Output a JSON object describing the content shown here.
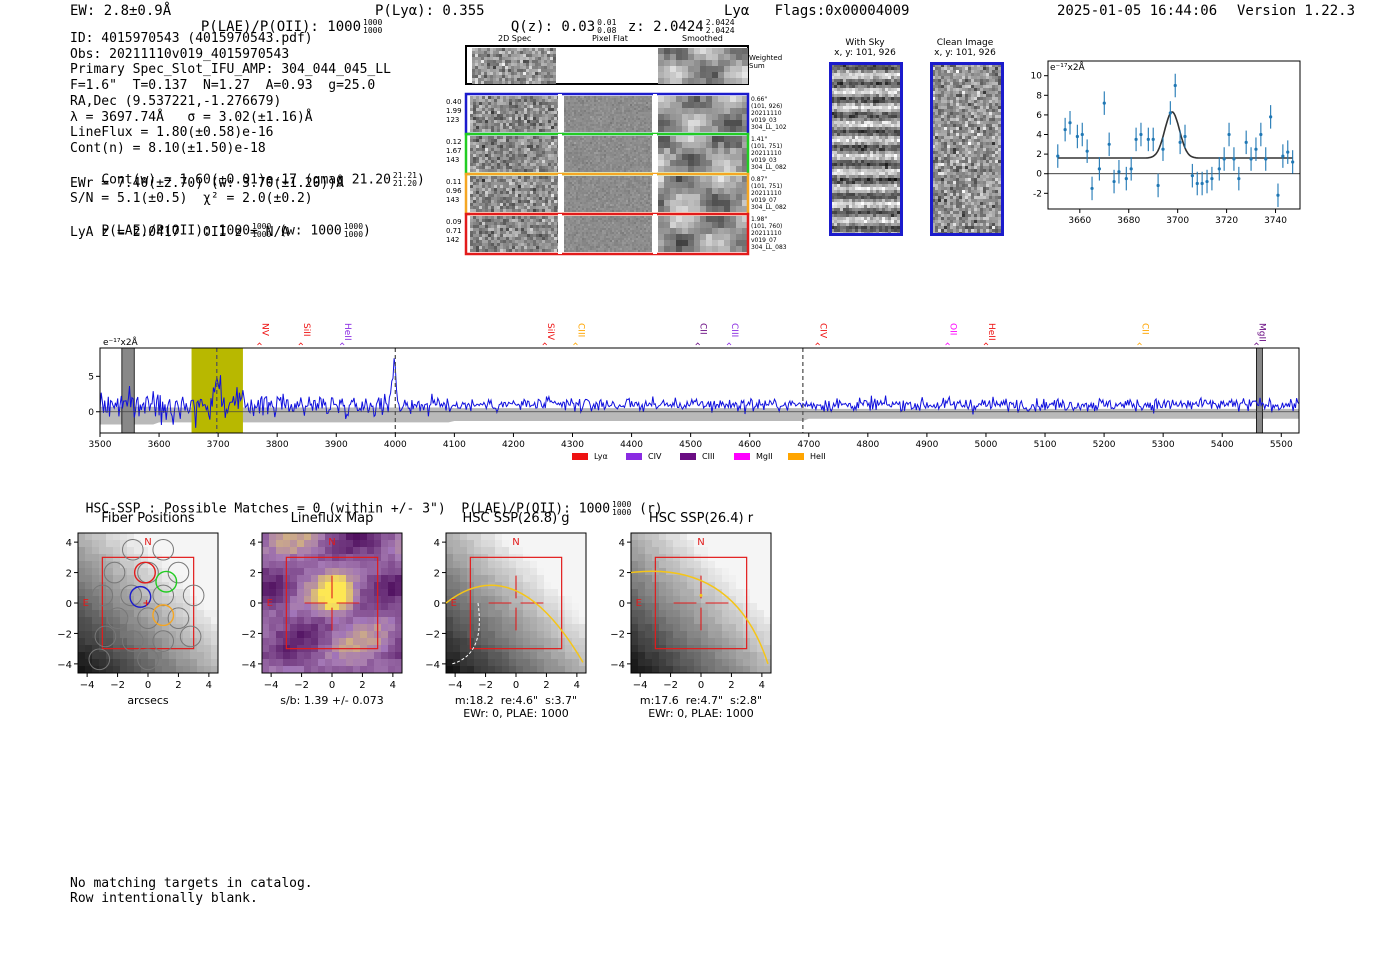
{
  "header": {
    "ew_text": "EW: 2.8±0.9Å",
    "plae_text": "P(LAE)/P(OII): 1000",
    "plae_hi": "1000",
    "plae_lo": "1000",
    "plya_text": "P(Lyα): 0.355",
    "qz_text": "Q(z): 0.03",
    "qz_hi": "0.01",
    "qz_lo": "0.08",
    "z_text": "z: 2.0424",
    "z_hi": "2.0424",
    "z_lo": "2.0424",
    "flags_text": "Lyα   Flags:0x00004009",
    "timestamp": "2025-01-05 16:44:06",
    "version": "Version 1.22.3"
  },
  "info": {
    "line_id": "ID: 4015970543 (4015970543.pdf)",
    "line_obs": "Obs: 20211110v019_4015970543",
    "line_primary": "Primary Spec_Slot_IFU_AMP: 304_044_045_LL",
    "line_f": "F=1.6\"  T=0.137  N=1.27  A=0.93  g=25.0",
    "line_radec": "RA,Dec (9.537221,-1.276679)",
    "line_lambda": "λ = 3697.74Å   σ = 3.02(±1.16)Å",
    "line_flux": "LineFlux = 1.80(±0.58)e-16",
    "line_contn": "Cont(n) = 8.10(±1.50)e-18",
    "line_contw": "Cont(w) = 1.60(±0.01)e-17 (gmag 21.20",
    "contw_hi": "21.21",
    "contw_lo": "21.20",
    "contw_close": ")",
    "line_ewr": "EWr = 7.40(±2.70) (w: 3.70(±1.20))Å",
    "line_sn": "S/N = 5.1(±0.5)  χ² = 2.0(±0.2)",
    "line_plae": "P(LAE)/P(OII): 1000",
    "plae_hi": "1000",
    "plae_lo": "1000",
    "plae_mid": "(w: 1000",
    "plae_w_hi": "1000",
    "plae_w_lo": "1000",
    "plae_close": ")",
    "line_lya": "LyA z = 2.0417   OII z = N/A"
  },
  "fiber_panels": {
    "col_titles": [
      "2D Spec",
      "Pixel Flat",
      "Smoothed"
    ],
    "weighted_label": "Weighted\nSum",
    "rows": [
      {
        "left": "0.40\n1.99\n123",
        "right": "0.66\"\n(101, 926)\n20211110\nv019_03\n304_LL_102",
        "color": "#1b1bcc"
      },
      {
        "left": "0.12\n1.67\n143",
        "right": "1.41\"\n(101, 751)\n20211110\nv019_03\n304_LL_082",
        "color": "#22cc22"
      },
      {
        "left": "0.11\n0.96\n143",
        "right": "0.87\"\n(101, 751)\n20211110\nv019_07\n304_LL_082",
        "color": "#f5a623"
      },
      {
        "left": "0.09\n0.71\n142",
        "right": "1.98\"\n(101, 760)\n20211110\nv019_07\n304_LL_083",
        "color": "#e21b1b"
      }
    ]
  },
  "ccd_cutouts": [
    {
      "title": "With Sky",
      "sub": "x, y: 101, 926"
    },
    {
      "title": "Clean Image",
      "sub": "x, y: 101, 926"
    }
  ],
  "colors": {
    "spectrum": "#1010dd",
    "error_band": "#b9b9b9",
    "highlight": "#b8b800",
    "fit_point": "#1f77b4",
    "legend": [
      "#ee1111",
      "#8a2be2",
      "#6a0d83",
      "#ff00ff",
      "#ffa500"
    ]
  },
  "chart_data": [
    {
      "type": "scatter",
      "name": "line fit zoom",
      "ylabel_scale": "e⁻¹⁷x2Å",
      "xlim": [
        3647,
        3750
      ],
      "ylim": [
        -3.6,
        11.5
      ],
      "xticks": [
        3660,
        3680,
        3700,
        3720,
        3740
      ],
      "yticks": [
        -2,
        0,
        2,
        4,
        6,
        8,
        10
      ],
      "x": [
        3651,
        3654,
        3656,
        3659,
        3661,
        3663,
        3665,
        3668,
        3670,
        3672,
        3674,
        3676,
        3679,
        3681,
        3683,
        3685,
        3688,
        3690,
        3692,
        3694,
        3697,
        3699,
        3701,
        3703,
        3706,
        3708,
        3710,
        3712,
        3714,
        3717,
        3719,
        3721,
        3723,
        3725,
        3728,
        3730,
        3732,
        3734,
        3736,
        3738,
        3741,
        3743,
        3745,
        3747
      ],
      "y": [
        1.8,
        4.5,
        5.2,
        3.8,
        4.0,
        2.3,
        -1.5,
        0.5,
        7.2,
        3.0,
        -0.8,
        0.2,
        -0.5,
        0.5,
        3.5,
        4.0,
        3.5,
        3.5,
        -1.2,
        2.5,
        6.2,
        9.0,
        3.2,
        3.8,
        -0.2,
        -1.0,
        -1.0,
        -0.8,
        -0.5,
        0.5,
        1.5,
        4.0,
        1.5,
        -0.5,
        3.2,
        1.5,
        2.5,
        4.0,
        1.5,
        5.8,
        -2.2,
        1.8,
        2.2,
        1.2
      ],
      "fit": {
        "continuum": 1.6,
        "peak": 6.3,
        "center": 3697.74,
        "sigma": 3.02
      }
    },
    {
      "type": "line",
      "name": "full spectrum",
      "ylabel_scale": "e⁻¹⁷x2Å",
      "xlim": [
        3500,
        5530
      ],
      "ylim": [
        -3,
        9
      ],
      "xticks": [
        3500,
        3600,
        3700,
        3800,
        3900,
        4000,
        4100,
        4200,
        4300,
        4400,
        4500,
        4600,
        4700,
        4800,
        4900,
        5000,
        5100,
        5200,
        5300,
        5400,
        5500
      ],
      "yticks": [
        0,
        5
      ],
      "highlight_band": [
        3655,
        3742
      ],
      "dashed_lines": [
        3697.7,
        4000,
        4690
      ],
      "masked_bands": [
        [
          3537,
          3558
        ],
        [
          5458,
          5468
        ]
      ],
      "emission_lines": [
        {
          "label": "NV",
          "wave": 3770,
          "color": "#ee1111"
        },
        {
          "label": "SiII",
          "wave": 3840,
          "color": "#ee1111"
        },
        {
          "label": "HeII",
          "wave": 3910,
          "color": "#8a2be2"
        },
        {
          "label": "SiIV",
          "wave": 4253,
          "color": "#ee1111"
        },
        {
          "label": "CIII",
          "wave": 4305,
          "color": "#ffa500"
        },
        {
          "label": "CII",
          "wave": 4512,
          "color": "#6a0d83"
        },
        {
          "label": "CIII",
          "wave": 4565,
          "color": "#8a2be2"
        },
        {
          "label": "CIV",
          "wave": 4715,
          "color": "#ee1111"
        },
        {
          "label": "OII",
          "wave": 4935,
          "color": "#ff00ff"
        },
        {
          "label": "HeII",
          "wave": 5000,
          "color": "#ee1111"
        },
        {
          "label": "CII",
          "wave": 5260,
          "color": "#ffa500"
        },
        {
          "label": "MgII",
          "wave": 5458,
          "color": "#6a0d83"
        }
      ],
      "legend": [
        "Lyα",
        "CIV",
        "CIII",
        "MgII",
        "HeII"
      ]
    },
    {
      "type": "heatmap",
      "name": "cutouts",
      "xlim": [
        -4.6,
        4.6
      ],
      "ylim": [
        -4.6,
        4.6
      ],
      "ticks": [
        -4,
        -2,
        0,
        2,
        4
      ]
    }
  ],
  "hsc": {
    "summary": "HSC-SSP : Possible Matches = 0 (within +/- 3\")  P(LAE)/P(OII): 1000",
    "summary_hi": "1000",
    "summary_lo": "1000",
    "summary_tail": "(r)",
    "panels": [
      {
        "title": "Fiber Positions",
        "north": "N",
        "east": "E",
        "foot1": "arcsecs",
        "foot2": ""
      },
      {
        "title": "Lineflux Map",
        "north": "N",
        "east": "E",
        "foot1": "s/b: 1.39 +/- 0.073",
        "foot2": ""
      },
      {
        "title": "HSC SSP(26.8) g",
        "north": "N",
        "east": "E",
        "foot1": "m:18.2  re:4.6\"  s:3.7\"",
        "foot2": "EWr: 0, PLAE: 1000"
      },
      {
        "title": "HSC SSP(26.4) r",
        "north": "N",
        "east": "E",
        "foot1": "m:17.6  re:4.7\"  s:2.8\"",
        "foot2": "EWr: 0, PLAE: 1000"
      }
    ]
  },
  "notes": {
    "line1": "No matching targets in catalog.",
    "line2": "Row intentionally blank."
  }
}
